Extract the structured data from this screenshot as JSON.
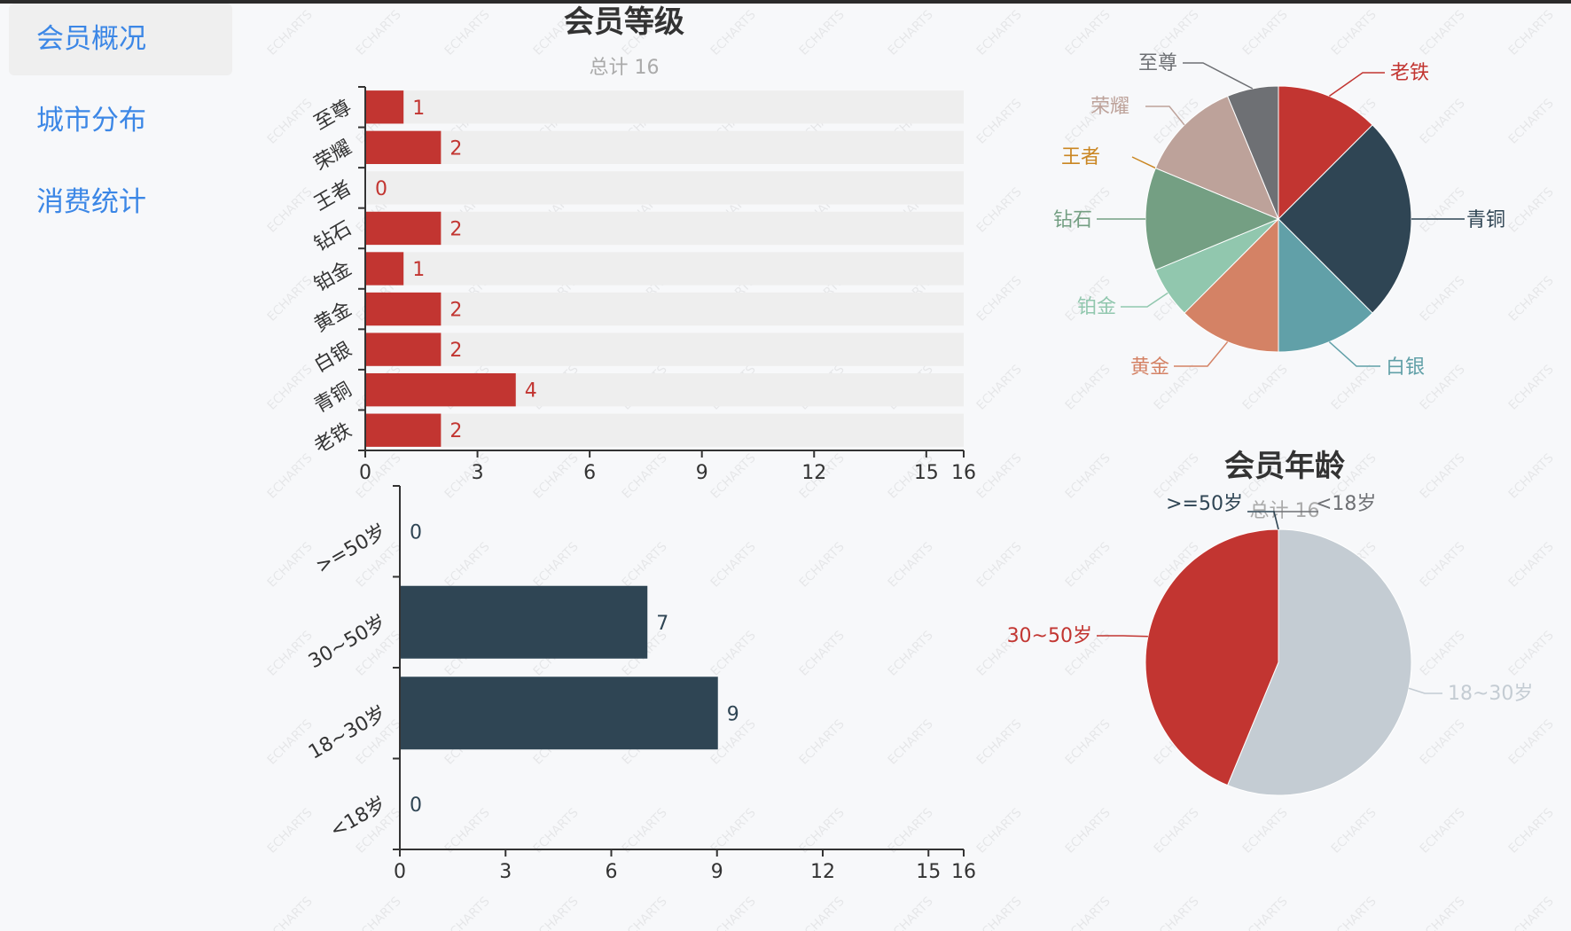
{
  "sidebar": {
    "items": [
      {
        "label": "会员概况",
        "active": true
      },
      {
        "label": "城市分布",
        "active": false
      },
      {
        "label": "消费统计",
        "active": false
      }
    ]
  },
  "watermark": "ECHARTS",
  "colors": {
    "nav_text": "#3c87e6",
    "nav_active_bg": "#efefef",
    "bar_level": "#c23531",
    "bar_age": "#2f4554",
    "bar_bg": "#eeeeee",
    "axis": "#333333",
    "title": "#333333",
    "subtitle": "#aaaaaa"
  },
  "chart_data": [
    {
      "id": "level-bar",
      "type": "bar",
      "orientation": "horizontal",
      "title": "会员等级",
      "subtitle": "总计 16",
      "categories": [
        "老铁",
        "青铜",
        "白银",
        "黄金",
        "铂金",
        "钻石",
        "王者",
        "荣耀",
        "至尊"
      ],
      "values": [
        2,
        4,
        2,
        2,
        1,
        2,
        0,
        2,
        1
      ],
      "xlim": [
        0,
        16
      ],
      "xticks": [
        0,
        3,
        6,
        9,
        12,
        15,
        16
      ],
      "show_background_bars": true,
      "data_labels": true
    },
    {
      "id": "level-pie",
      "type": "pie",
      "slices": [
        {
          "name": "老铁",
          "value": 2,
          "color": "#c23531"
        },
        {
          "name": "青铜",
          "value": 4,
          "color": "#2f4554"
        },
        {
          "name": "白银",
          "value": 2,
          "color": "#61a0a8"
        },
        {
          "name": "黄金",
          "value": 2,
          "color": "#d48265"
        },
        {
          "name": "铂金",
          "value": 1,
          "color": "#91c7ae"
        },
        {
          "name": "钻石",
          "value": 2,
          "color": "#749f83"
        },
        {
          "name": "王者",
          "value": 0,
          "color": "#ca8622"
        },
        {
          "name": "荣耀",
          "value": 2,
          "color": "#bda29a"
        },
        {
          "name": "至尊",
          "value": 1,
          "color": "#6e7074"
        }
      ]
    },
    {
      "id": "age-bar",
      "type": "bar",
      "orientation": "horizontal",
      "categories": [
        "<18岁",
        "18~30岁",
        "30~50岁",
        ">=50岁"
      ],
      "values": [
        0,
        9,
        7,
        0
      ],
      "xlim": [
        0,
        16
      ],
      "xticks": [
        0,
        3,
        6,
        9,
        12,
        15,
        16
      ],
      "data_labels": true
    },
    {
      "id": "age-pie",
      "type": "pie",
      "title": "会员年龄",
      "subtitle": "总计 16",
      "slices": [
        {
          "name": "<18岁",
          "value": 0,
          "color": "#6e7074"
        },
        {
          "name": "18~30岁",
          "value": 9,
          "color": "#c4ccd3"
        },
        {
          "name": "30~50岁",
          "value": 7,
          "color": "#c23531"
        },
        {
          "name": ">=50岁",
          "value": 0,
          "color": "#2f4554"
        }
      ]
    }
  ]
}
